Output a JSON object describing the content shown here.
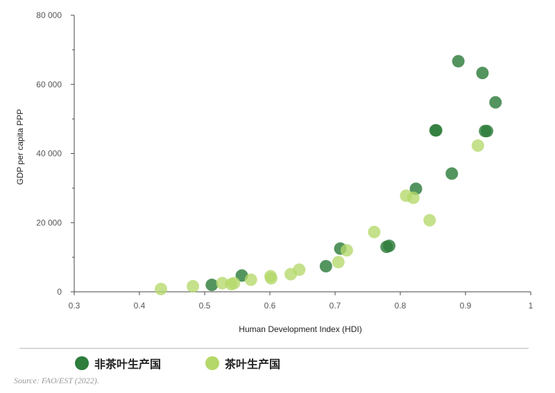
{
  "chart_data": {
    "type": "scatter",
    "title": "",
    "xlabel": "Human Development Index (HDI)",
    "ylabel": "GDP per capita PPP",
    "xlim": [
      0.3,
      1.0
    ],
    "ylim": [
      0,
      80000
    ],
    "x_ticks": [
      "0.3",
      "0.4",
      "0.5",
      "0.6",
      "0.7",
      "0.8",
      "0.9",
      "1"
    ],
    "y_ticks": [
      "0",
      "20 000",
      "40 000",
      "60 000",
      "80 000"
    ],
    "grid": false,
    "legend_position": "bottom-left",
    "series": [
      {
        "name": "非茶叶生产国",
        "color": "#2e7d3c",
        "points": [
          [
            0.511,
            2000
          ],
          [
            0.557,
            4700
          ],
          [
            0.686,
            7400
          ],
          [
            0.708,
            12500
          ],
          [
            0.779,
            13000
          ],
          [
            0.783,
            13300
          ],
          [
            0.824,
            29800
          ],
          [
            0.854,
            46700
          ],
          [
            0.855,
            46700
          ],
          [
            0.879,
            34200
          ],
          [
            0.889,
            66700
          ],
          [
            0.926,
            63300
          ],
          [
            0.93,
            46500
          ],
          [
            0.933,
            46500
          ],
          [
            0.946,
            54800
          ]
        ]
      },
      {
        "name": "茶叶生产国",
        "color": "#b5d86a",
        "points": [
          [
            0.433,
            800
          ],
          [
            0.482,
            1600
          ],
          [
            0.527,
            2500
          ],
          [
            0.541,
            2200
          ],
          [
            0.545,
            2500
          ],
          [
            0.571,
            3500
          ],
          [
            0.601,
            4500
          ],
          [
            0.602,
            3900
          ],
          [
            0.632,
            5100
          ],
          [
            0.645,
            6400
          ],
          [
            0.705,
            8600
          ],
          [
            0.718,
            12000
          ],
          [
            0.76,
            17300
          ],
          [
            0.809,
            27800
          ],
          [
            0.82,
            27200
          ],
          [
            0.845,
            20700
          ],
          [
            0.919,
            42300
          ]
        ]
      }
    ]
  },
  "source": "Source: FAO/EST (2022)."
}
